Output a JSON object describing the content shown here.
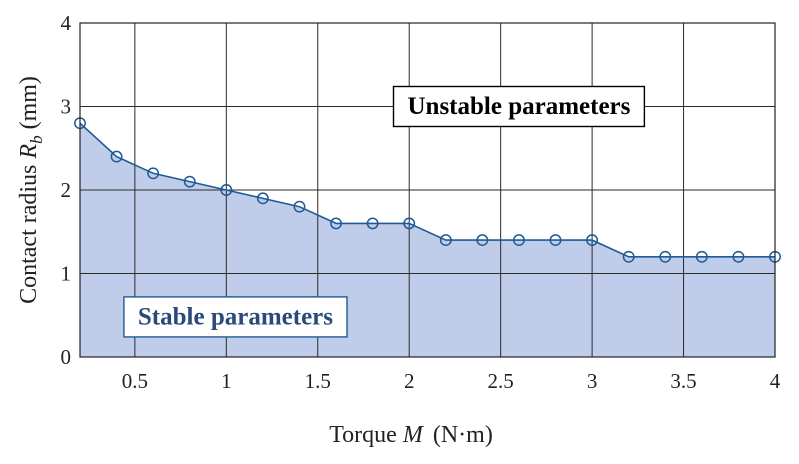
{
  "chart_data": {
    "type": "area",
    "x": [
      0.2,
      0.4,
      0.6,
      0.8,
      1.0,
      1.2,
      1.4,
      1.6,
      1.8,
      2.0,
      2.2,
      2.4,
      2.6,
      2.8,
      3.0,
      3.2,
      3.4,
      3.6,
      3.8,
      4.0
    ],
    "y": [
      2.8,
      2.4,
      2.2,
      2.1,
      2.0,
      1.9,
      1.8,
      1.6,
      1.6,
      1.6,
      1.4,
      1.4,
      1.4,
      1.4,
      1.4,
      1.2,
      1.2,
      1.2,
      1.2,
      1.2
    ],
    "xlim": [
      0.2,
      4.0
    ],
    "ylim": [
      0,
      4
    ],
    "xticks": [
      0.5,
      1,
      1.5,
      2,
      2.5,
      3,
      3.5,
      4
    ],
    "xtick_labels": [
      "0.5",
      "1",
      "1.5",
      "2",
      "2.5",
      "3",
      "3.5",
      "4"
    ],
    "yticks": [
      0,
      1,
      2,
      3,
      4
    ],
    "ytick_labels": [
      "0",
      "1",
      "2",
      "3",
      "4"
    ],
    "xlabel": {
      "prefix": "Torque ",
      "symbol": "M",
      "unit": "(N·m)"
    },
    "ylabel": {
      "prefix": "Contact  radius ",
      "symbol": "R",
      "subscript": "b",
      "unit": " (mm)"
    },
    "grid": true,
    "annotations": {
      "unstable": {
        "text": "Unstable parameters",
        "x": 2.6,
        "y": 3.0
      },
      "stable": {
        "text": "Stable parameters",
        "x": 1.05,
        "y": 0.48
      }
    },
    "colors": {
      "line": "#1f5a96",
      "fill": "#c0cdea",
      "stable_text": "#2b4a7a",
      "unstable_text": "#000000"
    }
  }
}
